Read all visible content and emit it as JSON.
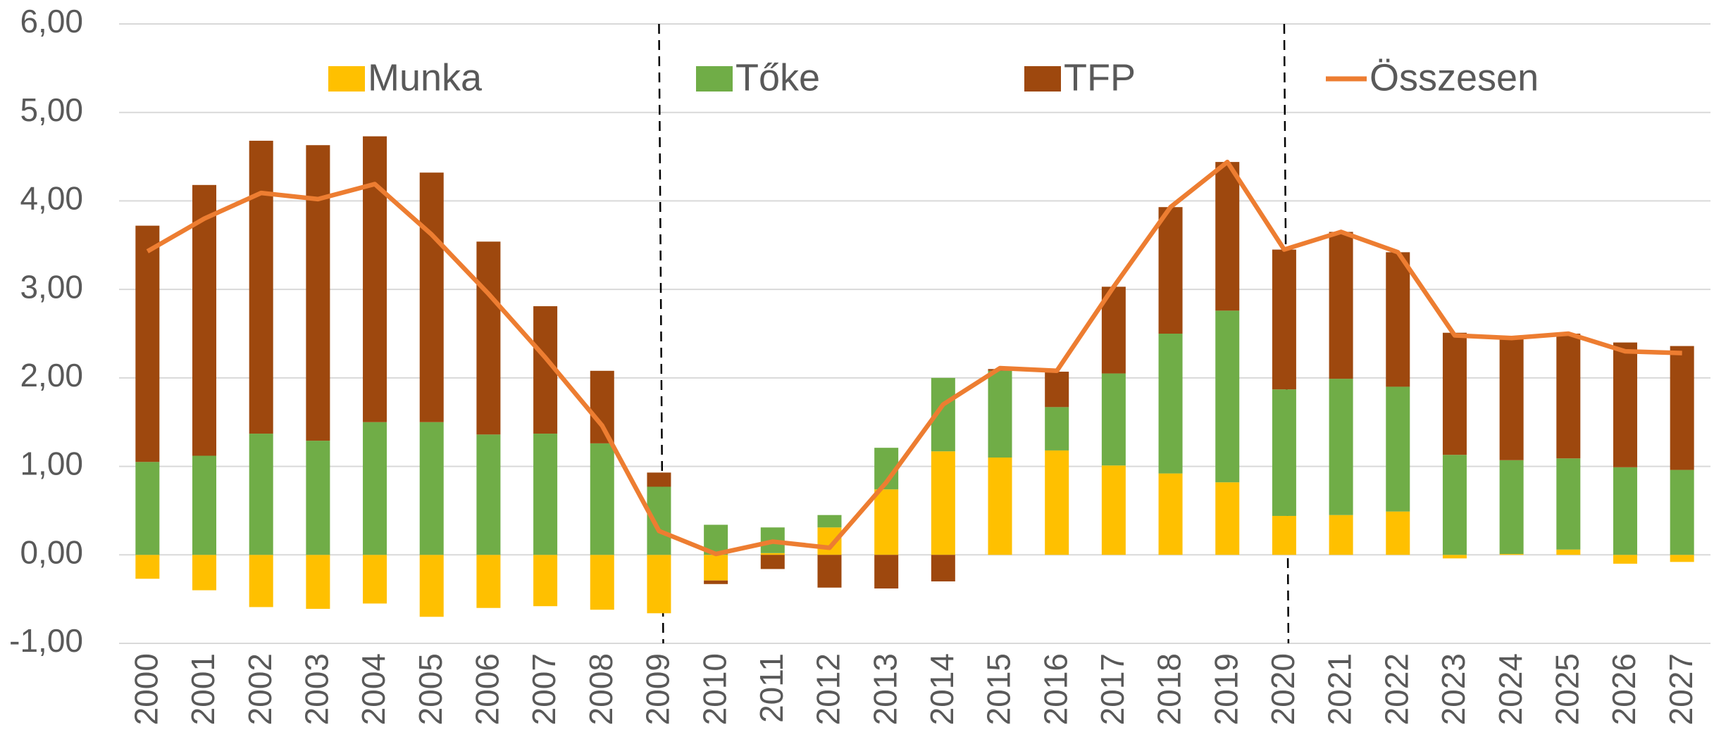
{
  "chart_data": {
    "type": "stacked-bar-line",
    "categories": [
      "2000",
      "2001",
      "2002",
      "2003",
      "2004",
      "2005",
      "2006",
      "2007",
      "2008",
      "2009",
      "2010",
      "2011",
      "2012",
      "2013",
      "2014",
      "2015",
      "2016",
      "2017",
      "2018",
      "2019",
      "2020",
      "2021",
      "2022",
      "2023",
      "2024",
      "2025",
      "2026",
      "2027"
    ],
    "series": [
      {
        "name": "Munka",
        "color": "#ffc000",
        "kind": "bar",
        "values": [
          -0.27,
          -0.4,
          -0.59,
          -0.61,
          -0.55,
          -0.7,
          -0.6,
          -0.58,
          -0.62,
          -0.66,
          -0.29,
          0.02,
          0.31,
          0.74,
          1.17,
          1.1,
          1.18,
          1.01,
          0.92,
          0.82,
          0.44,
          0.45,
          0.49,
          -0.04,
          0.01,
          0.06,
          -0.1,
          -0.08
        ]
      },
      {
        "name": "Tőke",
        "color": "#70ad47",
        "kind": "bar",
        "values": [
          1.05,
          1.12,
          1.37,
          1.29,
          1.5,
          1.5,
          1.36,
          1.37,
          1.26,
          0.77,
          0.34,
          0.29,
          0.14,
          0.47,
          0.83,
          0.98,
          0.49,
          1.04,
          1.58,
          1.94,
          1.43,
          1.54,
          1.41,
          1.13,
          1.06,
          1.03,
          0.99,
          0.96
        ]
      },
      {
        "name": "TFP",
        "color": "#9e480e",
        "kind": "bar",
        "values": [
          2.67,
          3.06,
          3.31,
          3.34,
          3.23,
          2.82,
          2.18,
          1.44,
          0.82,
          0.16,
          -0.04,
          -0.16,
          -0.37,
          -0.38,
          -0.3,
          0.02,
          0.4,
          0.98,
          1.43,
          1.68,
          1.58,
          1.66,
          1.52,
          1.38,
          1.39,
          1.41,
          1.41,
          1.4
        ]
      },
      {
        "name": "Összesen",
        "color": "#ed7d31",
        "kind": "line",
        "values": [
          3.43,
          3.8,
          4.09,
          4.02,
          4.19,
          3.62,
          2.95,
          2.23,
          1.46,
          0.27,
          0.01,
          0.15,
          0.08,
          0.82,
          1.7,
          2.11,
          2.08,
          3.03,
          3.93,
          4.44,
          3.45,
          3.65,
          3.42,
          2.48,
          2.45,
          2.5,
          2.3,
          2.28
        ]
      }
    ],
    "ylim": [
      -1,
      6
    ],
    "yticks": [
      {
        "value": -1,
        "label": "-1,00"
      },
      {
        "value": 0,
        "label": "0,00"
      },
      {
        "value": 1,
        "label": "1,00"
      },
      {
        "value": 2,
        "label": "2,00"
      },
      {
        "value": 3,
        "label": "3,00"
      },
      {
        "value": 4,
        "label": "4,00"
      },
      {
        "value": 5,
        "label": "5,00"
      },
      {
        "value": 6,
        "label": "6,00"
      }
    ],
    "grid": true,
    "legend": "top"
  }
}
